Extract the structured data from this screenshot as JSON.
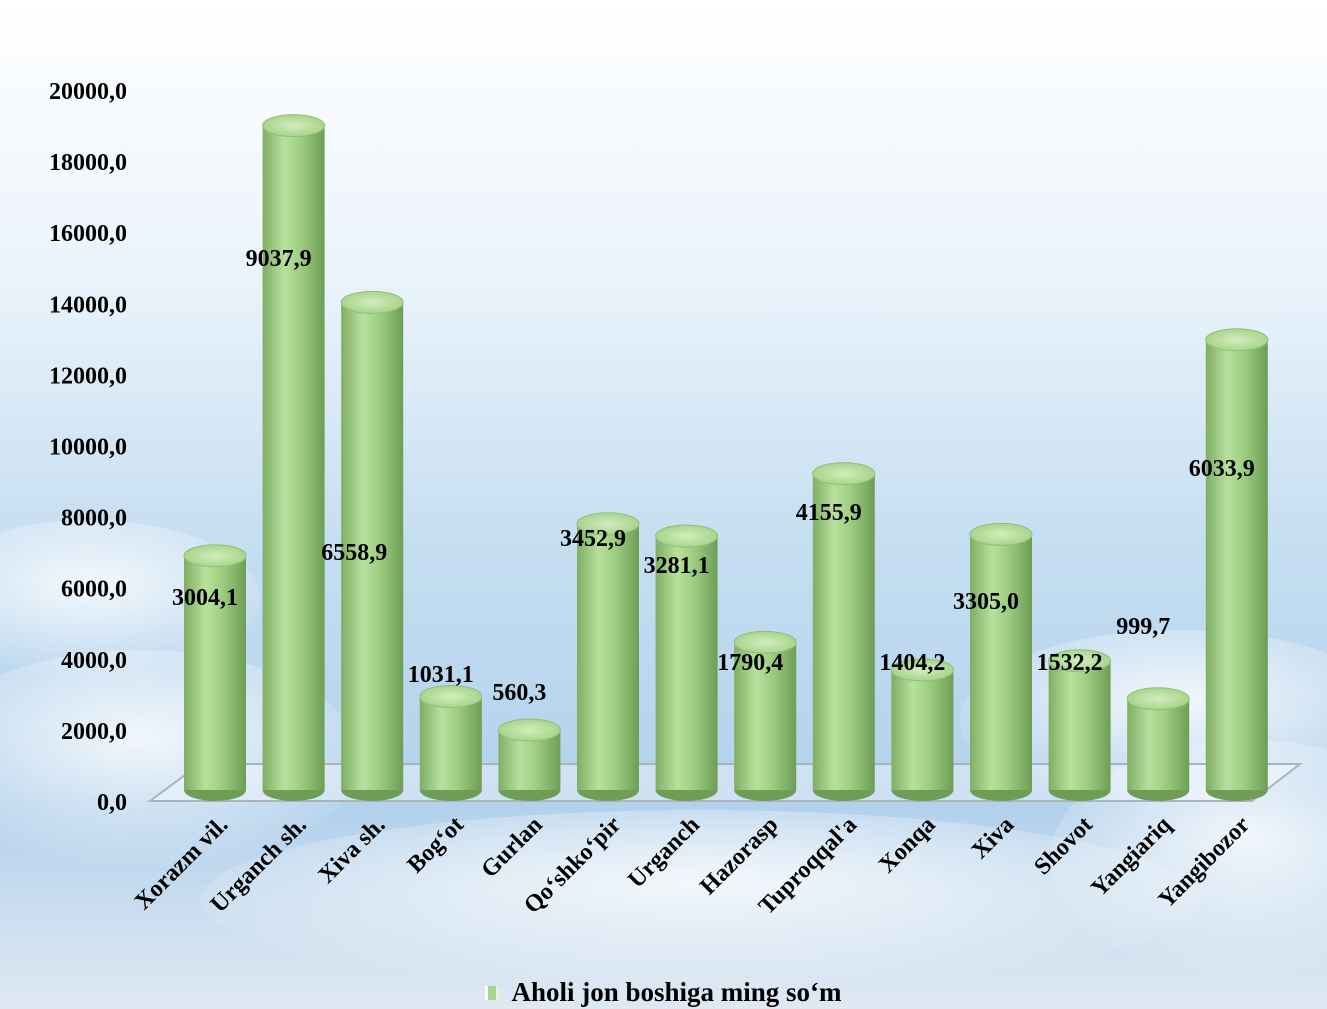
{
  "chart_data": {
    "type": "bar",
    "categories": [
      "Xorazm vil.",
      "Urganch sh.",
      "Xiva sh.",
      "Bog‘ot",
      "Gurlan",
      "Qo‘shko‘pir",
      "Urganch",
      "Hazorasp",
      "Tuproqqal'a",
      "Xonqa",
      "Xiva",
      "Shovot",
      "Yangiariq",
      "Yangibozor"
    ],
    "series": [
      {
        "name": "Aholi jon boshiga ming so‘m",
        "values": [
          3004.1,
          9037.9,
          6558.9,
          1031.1,
          560.3,
          3452.9,
          3281.1,
          1790.4,
          4155.9,
          1404.2,
          3305.0,
          1532.2,
          999.7,
          6033.9
        ],
        "labels": [
          "3004,1",
          "9037,9",
          "6558,9",
          "1031,1",
          "560,3",
          "3452,9",
          "3281,1",
          "1790,4",
          "4155,9",
          "1404,2",
          "3305,0",
          "1532,2",
          "999,7",
          "6033,9"
        ]
      }
    ],
    "ylim": [
      0,
      20000
    ],
    "yticks": [
      "0,0",
      "2000,0",
      "4000,0",
      "6000,0",
      "8000,0",
      "10000,0",
      "12000,0",
      "14000,0",
      "16000,0",
      "18000,0",
      "20000,0"
    ],
    "grid": false,
    "legend_position": "bottom",
    "bar_color": "#9fcf82",
    "bar_shadow_color": "#6e9e55",
    "bar_highlight_color": "#d4edbf"
  }
}
